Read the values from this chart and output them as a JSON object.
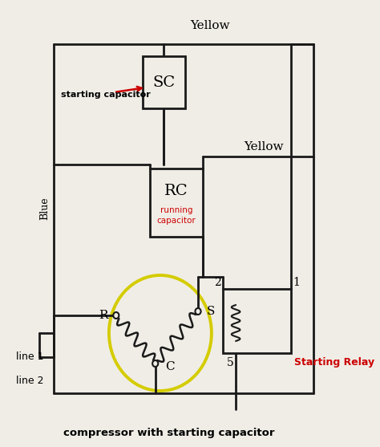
{
  "bg_color": "#f0ede6",
  "line_color": "#1a1a1a",
  "title": "compressor with starting capacitor",
  "yellow_label1": "Yellow",
  "yellow_label2": "Yellow",
  "blue_label": "Blue",
  "sc_label": "SC",
  "rc_label": "RC",
  "rc_sub1": "running",
  "rc_sub2": "capacitor",
  "starting_cap_label": "starting capacitor",
  "relay_label": "Starting Relay",
  "line1_label": "line 1",
  "line2_label": "line 2",
  "r_label": "R",
  "s_label": "S",
  "c_label": "C",
  "num1": "1",
  "num2": "2",
  "num5": "5",
  "yellow_color": "#d4cc00",
  "red_color": "#cc0000"
}
